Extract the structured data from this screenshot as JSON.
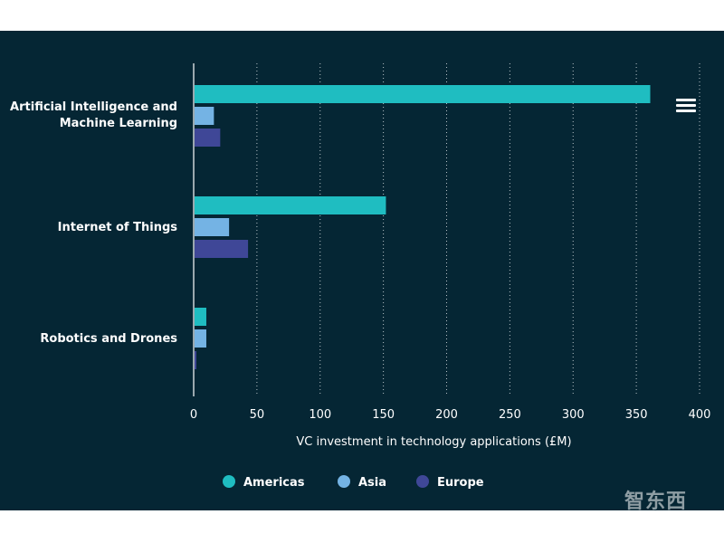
{
  "chart_data": {
    "type": "bar",
    "orientation": "horizontal",
    "categories": [
      "Artificial Intelligence and Machine Learning",
      "Internet of Things",
      "Robotics and Drones"
    ],
    "category_lines": [
      [
        "Artificial Intelligence and",
        "Machine Learning"
      ],
      [
        "Internet of Things"
      ],
      [
        "Robotics and Drones"
      ]
    ],
    "series": [
      {
        "name": "Americas",
        "color": "#1fbdc1",
        "values": [
          361,
          152,
          10
        ]
      },
      {
        "name": "Asia",
        "color": "#74b3e4",
        "values": [
          16,
          28,
          10
        ]
      },
      {
        "name": "Europe",
        "color": "#3f4797",
        "values": [
          21,
          43,
          2
        ]
      }
    ],
    "xlabel": "VC investment in technology applications (£M)",
    "xlim": [
      0,
      400
    ],
    "xticks": [
      0,
      50,
      100,
      150,
      200,
      250,
      300,
      350,
      400
    ],
    "grid": "dotted vertical",
    "legend": "bottom-center",
    "menu_icon": "hamburger-menu-icon",
    "watermark": "智东西"
  }
}
